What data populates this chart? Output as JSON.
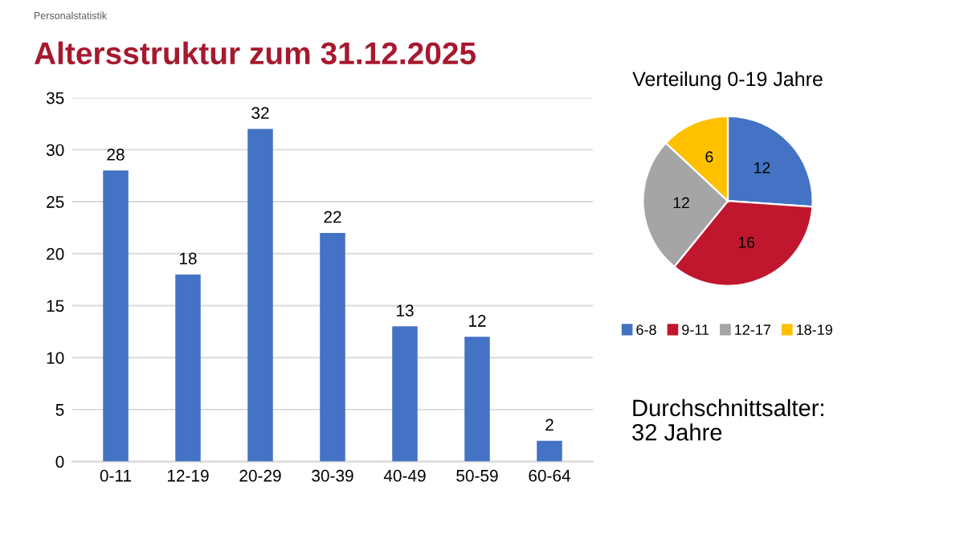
{
  "chart_data": [
    {
      "type": "bar",
      "title": "Altersstruktur zum 31.12.2025",
      "annotations": [
        "Personalstatistik"
      ],
      "categories": [
        "0-11",
        "12-19",
        "20-29",
        "30-39",
        "40-49",
        "50-59",
        "60-64"
      ],
      "values": [
        28,
        18,
        32,
        22,
        13,
        12,
        2
      ],
      "color": "#4472c4",
      "ylim": [
        0,
        35
      ],
      "yticks": [
        0,
        5,
        10,
        15,
        20,
        25,
        30,
        35
      ],
      "grid": "y",
      "data_labels": true
    },
    {
      "type": "pie",
      "title": "Verteilung 0-19 Jahre",
      "annotations": [
        "Durchschnittsalter:\n32 Jahre"
      ],
      "categories": [
        "6-8",
        "9-11",
        "12-17",
        "18-19"
      ],
      "values": [
        12,
        16,
        12,
        6
      ],
      "colors": [
        "#4472c4",
        "#c0172e",
        "#a5a5a5",
        "#ffc000"
      ],
      "data_labels": true,
      "legend": "bottom"
    }
  ]
}
